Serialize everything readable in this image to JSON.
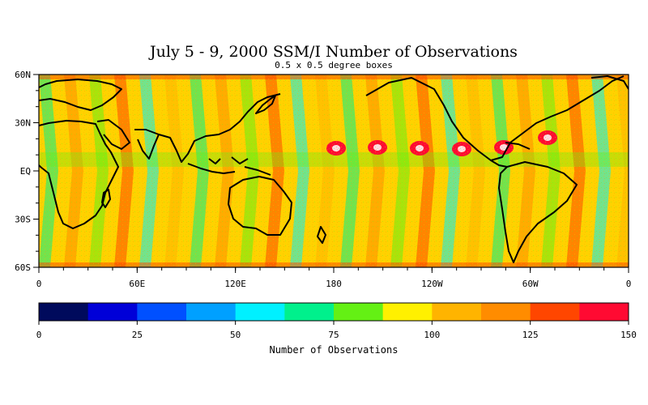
{
  "title": "July 5 - 9, 2000 SSM/I Number of Observations",
  "subtitle": "0.5 x 0.5 degree boxes",
  "map": {
    "lon_ticks": [
      "0",
      "60E",
      "120E",
      "180",
      "120W",
      "60W",
      "0"
    ],
    "lat_ticks": [
      "60N",
      "30N",
      "EQ",
      "30S",
      "60S"
    ],
    "lon_range": [
      0,
      360
    ],
    "lat_range": [
      -60,
      60
    ]
  },
  "colorbar": {
    "label": "Number of Observations",
    "range": [
      0,
      150
    ],
    "tick_labels": [
      "0",
      "25",
      "50",
      "75",
      "100",
      "125",
      "150"
    ],
    "colors": [
      "#000a5c",
      "#0000d8",
      "#0050ff",
      "#00a0ff",
      "#00f0ff",
      "#00f08c",
      "#64f014",
      "#fff000",
      "#ffb400",
      "#ff8c00",
      "#ff4600",
      "#ff0a32"
    ]
  }
}
